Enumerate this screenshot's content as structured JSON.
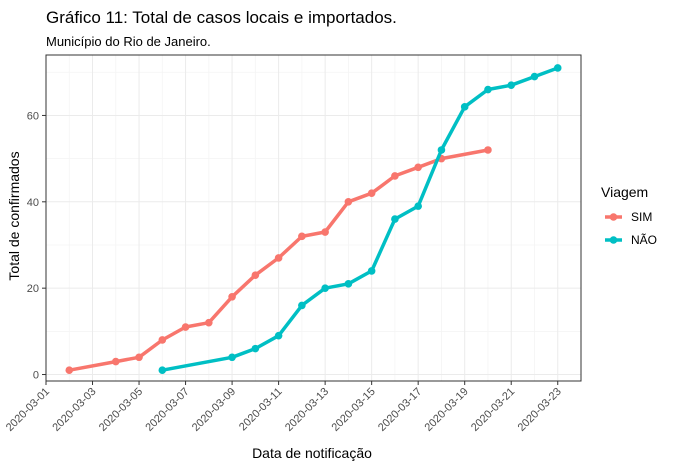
{
  "chart_data": {
    "type": "line",
    "title": "Gráfico 11: Total de casos locais e importados.",
    "subtitle": "Município do Rio de Janeiro.",
    "xlabel": "Data de notificação",
    "ylabel": "Total de confirmados",
    "x_ticks": [
      "2020-03-01",
      "2020-03-03",
      "2020-03-05",
      "2020-03-07",
      "2020-03-09",
      "2020-03-11",
      "2020-03-13",
      "2020-03-15",
      "2020-03-17",
      "2020-03-19",
      "2020-03-21",
      "2020-03-23"
    ],
    "y_ticks": [
      0,
      20,
      40,
      60
    ],
    "xlim": [
      "2020-03-01",
      "2020-03-24"
    ],
    "ylim": [
      -1.5,
      74
    ],
    "grid": true,
    "legend": {
      "title": "Viagem",
      "position": "right"
    },
    "series": [
      {
        "name": "SIM",
        "color": "#F8766D",
        "points": [
          {
            "x": "2020-03-02",
            "y": 1
          },
          {
            "x": "2020-03-04",
            "y": 3
          },
          {
            "x": "2020-03-05",
            "y": 4
          },
          {
            "x": "2020-03-06",
            "y": 8
          },
          {
            "x": "2020-03-07",
            "y": 11
          },
          {
            "x": "2020-03-08",
            "y": 12
          },
          {
            "x": "2020-03-09",
            "y": 18
          },
          {
            "x": "2020-03-10",
            "y": 23
          },
          {
            "x": "2020-03-11",
            "y": 27
          },
          {
            "x": "2020-03-12",
            "y": 32
          },
          {
            "x": "2020-03-13",
            "y": 33
          },
          {
            "x": "2020-03-14",
            "y": 40
          },
          {
            "x": "2020-03-15",
            "y": 42
          },
          {
            "x": "2020-03-16",
            "y": 46
          },
          {
            "x": "2020-03-17",
            "y": 48
          },
          {
            "x": "2020-03-18",
            "y": 50
          },
          {
            "x": "2020-03-20",
            "y": 52
          }
        ]
      },
      {
        "name": "NÃO",
        "color": "#00BFC4",
        "points": [
          {
            "x": "2020-03-06",
            "y": 1
          },
          {
            "x": "2020-03-09",
            "y": 4
          },
          {
            "x": "2020-03-10",
            "y": 6
          },
          {
            "x": "2020-03-11",
            "y": 9
          },
          {
            "x": "2020-03-12",
            "y": 16
          },
          {
            "x": "2020-03-13",
            "y": 20
          },
          {
            "x": "2020-03-14",
            "y": 21
          },
          {
            "x": "2020-03-15",
            "y": 24
          },
          {
            "x": "2020-03-16",
            "y": 36
          },
          {
            "x": "2020-03-17",
            "y": 39
          },
          {
            "x": "2020-03-18",
            "y": 52
          },
          {
            "x": "2020-03-19",
            "y": 62
          },
          {
            "x": "2020-03-20",
            "y": 66
          },
          {
            "x": "2020-03-21",
            "y": 67
          },
          {
            "x": "2020-03-22",
            "y": 69
          },
          {
            "x": "2020-03-23",
            "y": 71
          }
        ]
      }
    ]
  }
}
